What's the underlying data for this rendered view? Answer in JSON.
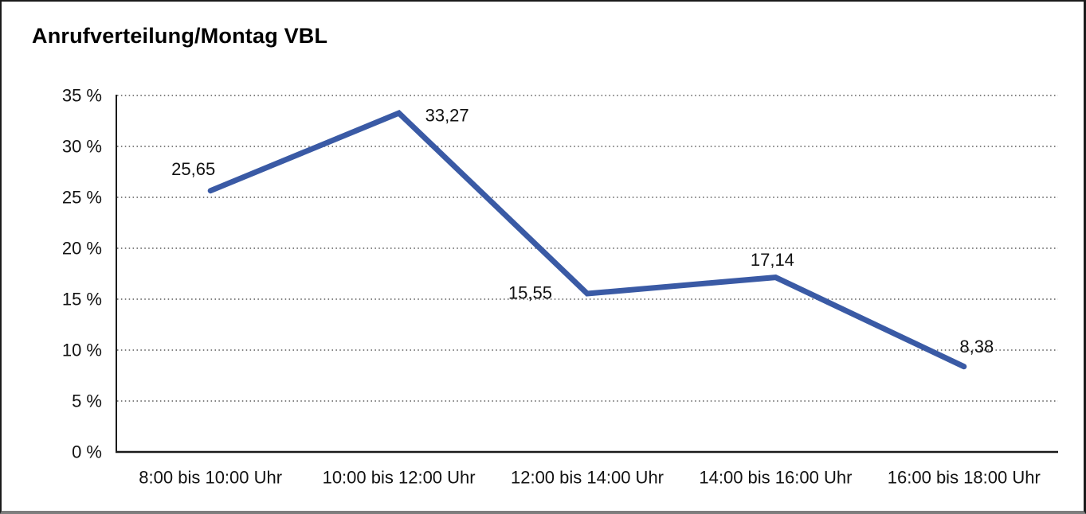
{
  "window": {
    "background": "#ffffff",
    "frame_color": "#1b1b1b",
    "frame_shadow_color": "#7e7e7e"
  },
  "title": "Anrufverteilung/Montag VBL",
  "chart_data": {
    "type": "line",
    "title": "Anrufverteilung/Montag VBL",
    "categories": [
      "8:00 bis 10:00 Uhr",
      "10:00 bis 12:00 Uhr",
      "12:00 bis 14:00 Uhr",
      "14:00 bis 16:00 Uhr",
      "16:00 bis 18:00 Uhr"
    ],
    "values": [
      25.65,
      33.27,
      15.55,
      17.14,
      8.38
    ],
    "value_labels": [
      "25,65",
      "33,27",
      "15,55",
      "17,14",
      "8,38"
    ],
    "xlabel": "",
    "ylabel": "",
    "ylim": [
      0,
      35
    ],
    "y_tick_step": 5,
    "y_ticks": [
      {
        "value": 0,
        "label": "0 %"
      },
      {
        "value": 5,
        "label": "5 %"
      },
      {
        "value": 10,
        "label": "10 %"
      },
      {
        "value": 15,
        "label": "15 %"
      },
      {
        "value": 20,
        "label": "20 %"
      },
      {
        "value": 25,
        "label": "25 %"
      },
      {
        "value": 30,
        "label": "30 %"
      },
      {
        "value": 35,
        "label": "35 %"
      }
    ],
    "grid": "horizontal-dotted",
    "gridline_color": "#5a5a5a",
    "axis_color": "#1a1a1a",
    "line_color": "#3A5AA5",
    "line_width": 7,
    "markers": "none",
    "legend": "none"
  }
}
